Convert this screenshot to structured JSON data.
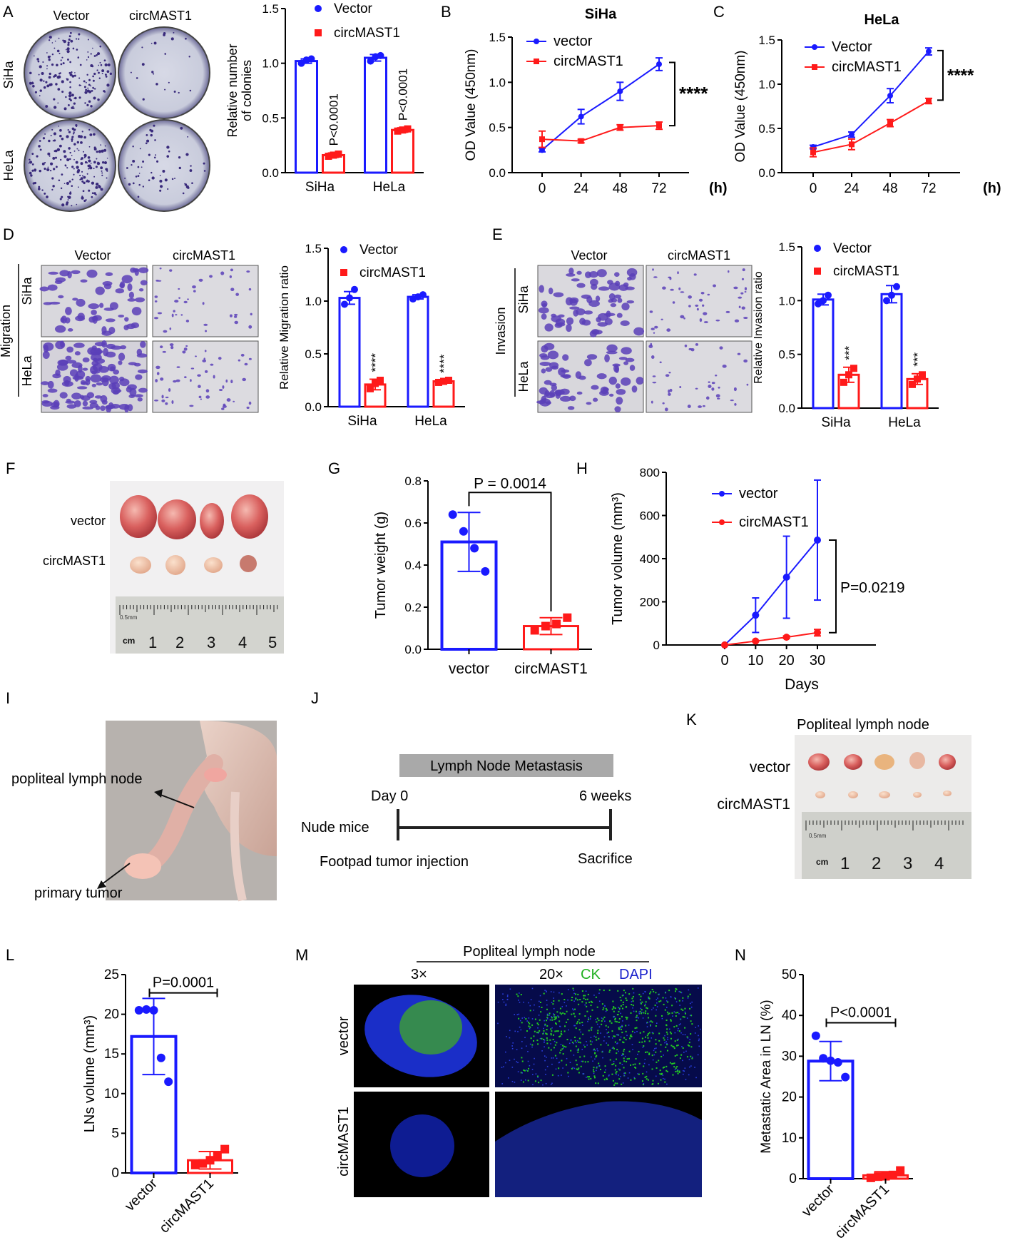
{
  "colors": {
    "blue": "#1a1aff",
    "red": "#ff1a1a",
    "stain": "#5a3fb8",
    "green": "#22cc22",
    "dapi": "#1a22cc"
  },
  "panels": {
    "A": {
      "letter": "A",
      "col_vector": "Vector",
      "col_circ": "circMAST1",
      "row_siha": "SiHa",
      "row_hela": "HeLa"
    },
    "B": {
      "letter": "B"
    },
    "C": {
      "letter": "C"
    },
    "D": {
      "letter": "D",
      "col_vector": "Vector",
      "col_circ": "circMAST1",
      "side": "Migration",
      "row_siha": "SiHa",
      "row_hela": "HeLa"
    },
    "E": {
      "letter": "E",
      "col_vector": "Vector",
      "col_circ": "circMAST1",
      "side": "Invasion",
      "row_siha": "SiHa",
      "row_hela": "HeLa"
    },
    "F": {
      "letter": "F",
      "row_vector": "vector",
      "row_circ": "circMAST1",
      "ruler_unit": "cm",
      "ruler_scale": "0.5mm",
      "ruler_nums": [
        "1",
        "2",
        "3",
        "4",
        "5"
      ]
    },
    "G": {
      "letter": "G"
    },
    "H": {
      "letter": "H"
    },
    "I": {
      "letter": "I",
      "label_ln": "popliteal lymph node",
      "label_tumor": "primary tumor"
    },
    "J": {
      "letter": "J",
      "title": "Lymph Node Metastasis",
      "start": "Day 0",
      "end": "6 weeks",
      "left_label": "Nude mice",
      "below_left": "Footpad tumor injection",
      "below_right": "Sacrifice"
    },
    "K": {
      "letter": "K",
      "title": "Popliteal lymph node",
      "row_vector": "vector",
      "row_circ": "circMAST1",
      "ruler_unit": "cm",
      "ruler_scale": "0.5mm",
      "ruler_nums": [
        "1",
        "2",
        "3",
        "4"
      ]
    },
    "L": {
      "letter": "L"
    },
    "M": {
      "letter": "M",
      "title": "Popliteal lymph node",
      "mag1": "3×",
      "mag2": "20×",
      "ck": "CK",
      "dapi": "DAPI",
      "row_vector": "vector",
      "row_circ": "circMAST1"
    },
    "N": {
      "letter": "N"
    }
  },
  "chart_data": [
    {
      "id": "A",
      "type": "bar",
      "categories": [
        "SiHa",
        "HeLa"
      ],
      "ylabel": "Relative number\nof colonies",
      "ylim": [
        0,
        1.5
      ],
      "yticks": [
        0.0,
        0.5,
        1.0,
        1.5
      ],
      "series": [
        {
          "name": "Vector",
          "values": [
            1.02,
            1.05
          ],
          "err": [
            0.02,
            0.03
          ],
          "points": [
            [
              1.0,
              1.03,
              1.04
            ],
            [
              1.02,
              1.06,
              1.07
            ]
          ]
        },
        {
          "name": "circMAST1",
          "values": [
            0.16,
            0.39
          ],
          "err": [
            0.02,
            0.02
          ],
          "points": [
            [
              0.15,
              0.16,
              0.17
            ],
            [
              0.38,
              0.39,
              0.4
            ]
          ]
        }
      ],
      "annotations": [
        "P<0.0001",
        "P<0.0001"
      ]
    },
    {
      "id": "B",
      "type": "line",
      "title": "SiHa",
      "ylabel": "OD Value (450nm)",
      "xunit": "(h)",
      "x": [
        0,
        24,
        48,
        72
      ],
      "ylim": [
        0,
        1.5
      ],
      "yticks": [
        0.0,
        0.5,
        1.0,
        1.5
      ],
      "series": [
        {
          "name": "vector",
          "values": [
            0.25,
            0.62,
            0.9,
            1.2
          ],
          "err": [
            0.02,
            0.08,
            0.1,
            0.07
          ]
        },
        {
          "name": "circMAST1",
          "values": [
            0.37,
            0.35,
            0.5,
            0.52
          ],
          "err": [
            0.09,
            0.02,
            0.03,
            0.04
          ]
        }
      ],
      "annotation": "****"
    },
    {
      "id": "C",
      "type": "line",
      "title": "HeLa",
      "ylabel": "OD Value (450nm)",
      "xunit": "(h)",
      "x": [
        0,
        24,
        48,
        72
      ],
      "ylim": [
        0,
        1.5
      ],
      "yticks": [
        0.0,
        0.5,
        1.0,
        1.5
      ],
      "series": [
        {
          "name": "Vector",
          "values": [
            0.29,
            0.43,
            0.87,
            1.37
          ],
          "err": [
            0.02,
            0.03,
            0.08,
            0.04
          ]
        },
        {
          "name": "circMAST1",
          "values": [
            0.23,
            0.32,
            0.56,
            0.81
          ],
          "err": [
            0.05,
            0.06,
            0.04,
            0.03
          ]
        }
      ],
      "annotation": "****"
    },
    {
      "id": "D",
      "type": "bar",
      "categories": [
        "SiHa",
        "HeLa"
      ],
      "ylabel": "Relative Migration ratio",
      "ylim": [
        0,
        1.5
      ],
      "yticks": [
        0.0,
        0.5,
        1.0,
        1.5
      ],
      "series": [
        {
          "name": "Vector",
          "values": [
            1.03,
            1.04
          ],
          "err": [
            0.06,
            0.02
          ],
          "points": [
            [
              0.97,
              1.03,
              1.11
            ],
            [
              1.02,
              1.04,
              1.06
            ]
          ]
        },
        {
          "name": "circMAST1",
          "values": [
            0.21,
            0.24
          ],
          "err": [
            0.05,
            0.01
          ],
          "points": [
            [
              0.17,
              0.22,
              0.25
            ],
            [
              0.23,
              0.24,
              0.25
            ]
          ]
        }
      ],
      "annotations": [
        "****",
        "****"
      ]
    },
    {
      "id": "E",
      "type": "bar",
      "categories": [
        "SiHa",
        "HeLa"
      ],
      "ylabel": "Relative Invasion ratio",
      "ylim": [
        0,
        1.5
      ],
      "yticks": [
        0.0,
        0.5,
        1.0,
        1.5
      ],
      "series": [
        {
          "name": "Vector",
          "values": [
            1.01,
            1.06
          ],
          "err": [
            0.05,
            0.08
          ],
          "points": [
            [
              0.97,
              1.0,
              1.05
            ],
            [
              1.0,
              1.05,
              1.13
            ]
          ]
        },
        {
          "name": "circMAST1",
          "values": [
            0.31,
            0.27
          ],
          "err": [
            0.07,
            0.05
          ],
          "points": [
            [
              0.24,
              0.31,
              0.37
            ],
            [
              0.22,
              0.27,
              0.31
            ]
          ]
        }
      ],
      "annotations": [
        "***",
        "***"
      ]
    },
    {
      "id": "G",
      "type": "bar",
      "categories": [
        "vector",
        "circMAST1"
      ],
      "ylabel": "Tumor weight (g)",
      "ylim": [
        0,
        0.8
      ],
      "yticks": [
        0.0,
        0.2,
        0.4,
        0.6,
        0.8
      ],
      "values": [
        0.51,
        0.11
      ],
      "err": [
        0.14,
        0.04
      ],
      "points": [
        [
          0.64,
          0.56,
          0.48,
          0.37
        ],
        [
          0.09,
          0.11,
          0.12,
          0.15
        ]
      ],
      "annotation": "P = 0.0014"
    },
    {
      "id": "H",
      "type": "line",
      "xlabel": "Days",
      "ylabel": "Tumor volume (mm³)",
      "x": [
        0,
        10,
        20,
        30
      ],
      "ylim": [
        0,
        800
      ],
      "yticks": [
        0,
        200,
        400,
        600,
        800
      ],
      "xlim": [
        0,
        30
      ],
      "series": [
        {
          "name": "vector",
          "values": [
            0,
            138,
            314,
            486
          ],
          "err": [
            0,
            80,
            190,
            278
          ]
        },
        {
          "name": "circMAST1",
          "values": [
            0,
            18,
            36,
            57
          ],
          "err": [
            0,
            3,
            6,
            15
          ]
        }
      ],
      "annotation": "P=0.0219"
    },
    {
      "id": "L",
      "type": "bar",
      "categories": [
        "vector",
        "circMAST1"
      ],
      "ylabel": "LNs volume (mm³)",
      "ylim": [
        0,
        25
      ],
      "yticks": [
        0,
        5,
        10,
        15,
        20,
        25
      ],
      "values": [
        17.2,
        1.6
      ],
      "err": [
        4.8,
        1.1
      ],
      "points": [
        [
          20.5,
          20.6,
          20.5,
          14.5,
          11.5
        ],
        [
          1.0,
          1.2,
          1.6,
          2.1,
          3.0
        ]
      ],
      "annotation": "P=0.0001"
    },
    {
      "id": "N",
      "type": "bar",
      "categories": [
        "vector",
        "circMAST1"
      ],
      "ylabel": "Metastatic Area in LN (%)",
      "ylim": [
        0,
        50
      ],
      "yticks": [
        0,
        10,
        20,
        30,
        40,
        50
      ],
      "values": [
        28.8,
        0.8
      ],
      "err": [
        4.8,
        0.9
      ],
      "points": [
        [
          35.0,
          29.5,
          28.9,
          28.5,
          24.9
        ],
        [
          0.2,
          0.5,
          0.6,
          0.9,
          2.0
        ]
      ],
      "annotation": "P<0.0001"
    }
  ]
}
